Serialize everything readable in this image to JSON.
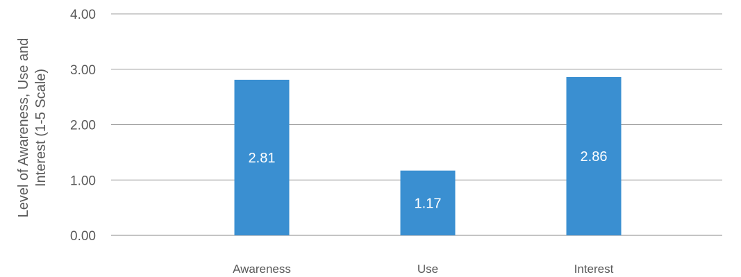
{
  "chart_data": {
    "type": "bar",
    "categories": [
      "Awareness",
      "Use",
      "Interest"
    ],
    "values": [
      2.81,
      1.17,
      2.86
    ],
    "data_labels": [
      "2.81",
      "1.17",
      "2.86"
    ],
    "ylabel_lines": [
      "Level of Awareness, Use and",
      "Interest (1-5 Scale)"
    ],
    "yticks": [
      "0.00",
      "1.00",
      "2.00",
      "3.00",
      "4.00"
    ],
    "ylim": [
      0,
      4
    ],
    "grid": true,
    "bar_color": "#3A8FD1",
    "grid_color": "#9E9E9E"
  }
}
